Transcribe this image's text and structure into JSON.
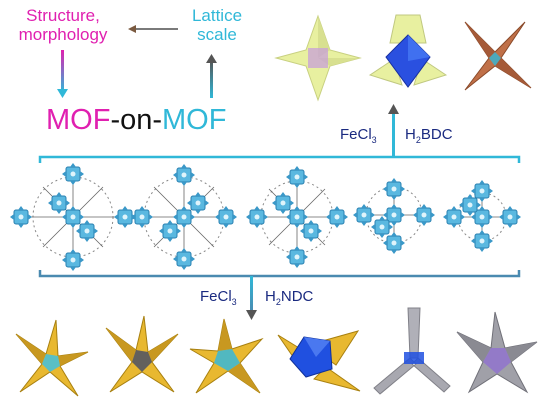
{
  "top_left": {
    "structure_line1": "Structure,",
    "structure_line2": "morphology",
    "lattice_line1": "Lattice",
    "lattice_line2": "scale",
    "mof_a": "MOF",
    "mof_dash": "-on-",
    "mof_b": "MOF"
  },
  "reagents_top": {
    "fecl": "FeCl",
    "fecl_sub": "3",
    "ligand_h": "H",
    "ligand_sub": "2",
    "ligand_rest": "BDC"
  },
  "reagents_bottom": {
    "fecl": "FeCl",
    "fecl_sub": "3",
    "ligand_h": "H",
    "ligand_sub": "2",
    "ligand_rest": "NDC"
  },
  "colors": {
    "magenta": "#e020b0",
    "cyan": "#30b8d8",
    "navy": "#1a2a80",
    "yellow_gold": "#e8b830",
    "pale_yellow": "#e8f0a0",
    "brown": "#c07048",
    "blue": "#2050e0",
    "grey": "#a0a0a8",
    "purple": "#9070d0"
  },
  "icons": {
    "top_crystals": [
      "pale-yellow-star-crystal",
      "yellow-blue-octahedron-crystal",
      "brown-star-crystal"
    ],
    "middle_frameworks": [
      "framework-1",
      "framework-2",
      "framework-3",
      "framework-4",
      "framework-5"
    ],
    "bottom_crystals": [
      "gold-star-crystal-1",
      "gold-star-crystal-2",
      "gold-cyan-star-crystal",
      "blue-gold-crystal",
      "grey-tripod-crystal",
      "grey-purple-crystal"
    ]
  }
}
